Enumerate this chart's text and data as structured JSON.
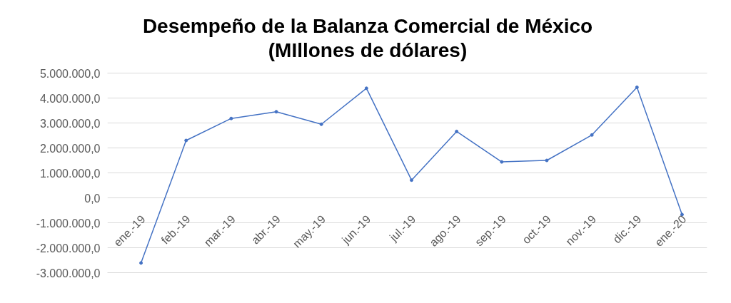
{
  "chart_data": {
    "type": "line",
    "title": "Desempeño de la Balanza Comercial de México\n(MIllones de dólares)",
    "categories": [
      "ene.-19",
      "feb.-19",
      "mar.-19",
      "abr.-19",
      "may.-19",
      "jun.-19",
      "jul.-19",
      "ago.-19",
      "sep.-19",
      "oct.-19",
      "nov.-19",
      "dic.-19",
      "ene.-20"
    ],
    "series": [
      {
        "color": "#4472c4",
        "values": [
          -2610000,
          2300000,
          3180000,
          3450000,
          2950000,
          4390000,
          710000,
          2660000,
          1440000,
          1500000,
          2520000,
          4430000,
          -670000
        ]
      }
    ],
    "ylim": [
      -3000000,
      5000000
    ],
    "yticks": [
      {
        "value": -3000000,
        "label": "-3.000.000,0"
      },
      {
        "value": -2000000,
        "label": "-2.000.000,0"
      },
      {
        "value": -1000000,
        "label": "-1.000.000,0"
      },
      {
        "value": 0,
        "label": "0,0"
      },
      {
        "value": 1000000,
        "label": "1.000.000,0"
      },
      {
        "value": 2000000,
        "label": "2.000.000,0"
      },
      {
        "value": 3000000,
        "label": "3.000.000,0"
      },
      {
        "value": 4000000,
        "label": "4.000.000,0"
      },
      {
        "value": 5000000,
        "label": "5.000.000,0"
      }
    ],
    "grid": "y",
    "marker": "circle",
    "line_style": "solid"
  }
}
